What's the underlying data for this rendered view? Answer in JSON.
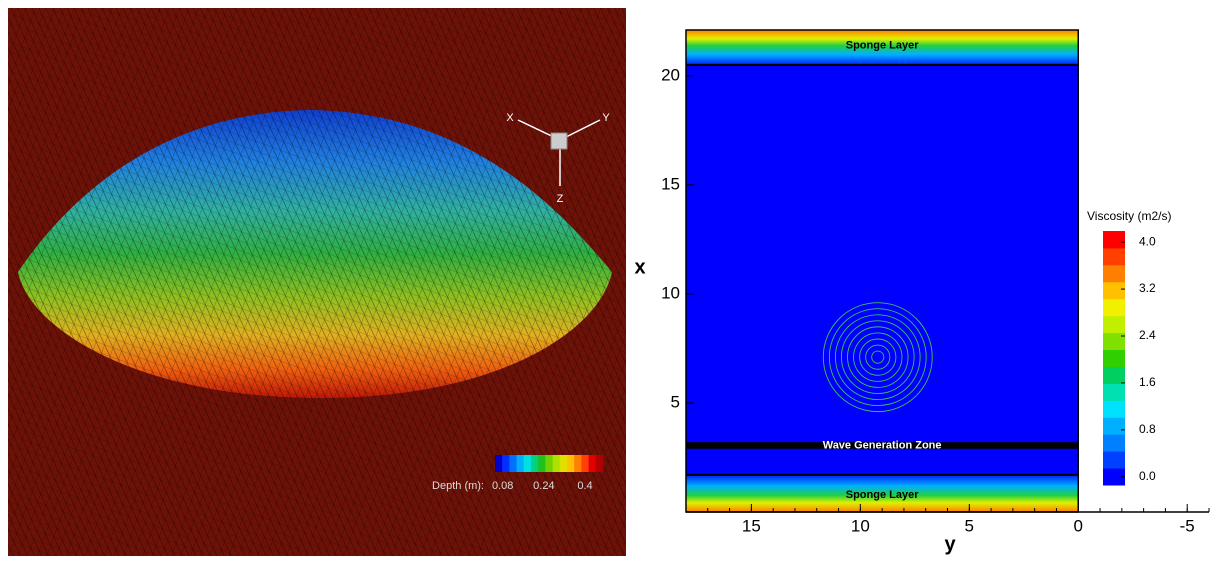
{
  "chart_data": [
    {
      "type": "surface",
      "axis_labels": [
        "X",
        "Y",
        "Z"
      ],
      "colorbar": {
        "label": "Depth (m):",
        "ticks": [
          0.08,
          0.24,
          0.4
        ],
        "clim": [
          0.05,
          0.47
        ],
        "colors": [
          "#0000c8",
          "#0030ff",
          "#0070ff",
          "#00b0ff",
          "#00e0e0",
          "#00d080",
          "#20c020",
          "#70d000",
          "#b0e000",
          "#e0e000",
          "#ffc000",
          "#ff8000",
          "#ff4000",
          "#e00000",
          "#b00000"
        ]
      }
    },
    {
      "type": "contour",
      "xlabel": "y",
      "ylabel": "x",
      "xlim": [
        18,
        -6
      ],
      "ylim": [
        0,
        22.1
      ],
      "xticks": [
        15,
        10,
        5,
        0,
        -5
      ],
      "yticks": [
        5,
        10,
        15,
        20
      ],
      "field_extent": [
        18,
        0
      ],
      "zones": [
        {
          "label": "Sponge Layer",
          "from": 20.5,
          "to": 22.1
        },
        {
          "label": "Wave Generation Zone",
          "from": 2.9,
          "to": 3.2
        },
        {
          "label": "Sponge Layer",
          "from": 0,
          "to": 1.7
        }
      ],
      "bump": {
        "y": 9.2,
        "x": 7.1,
        "radius": 2.5
      },
      "colorbar": {
        "label": "Viscosity (m2/s)",
        "clim": [
          -0.14,
          4.19
        ],
        "ticks": [
          {
            "value": 0,
            "label": "0.0"
          },
          0.8,
          1.6,
          2.4,
          3.2,
          {
            "value": 4,
            "label": "4.0"
          }
        ],
        "colors": [
          "#0000ff",
          "#0040ff",
          "#0080ff",
          "#00b0ff",
          "#00e0ff",
          "#00e0b0",
          "#00d060",
          "#30d000",
          "#80e000",
          "#c0f000",
          "#f0f000",
          "#ffc000",
          "#ff8000",
          "#ff4000",
          "#ff0000"
        ]
      }
    }
  ]
}
